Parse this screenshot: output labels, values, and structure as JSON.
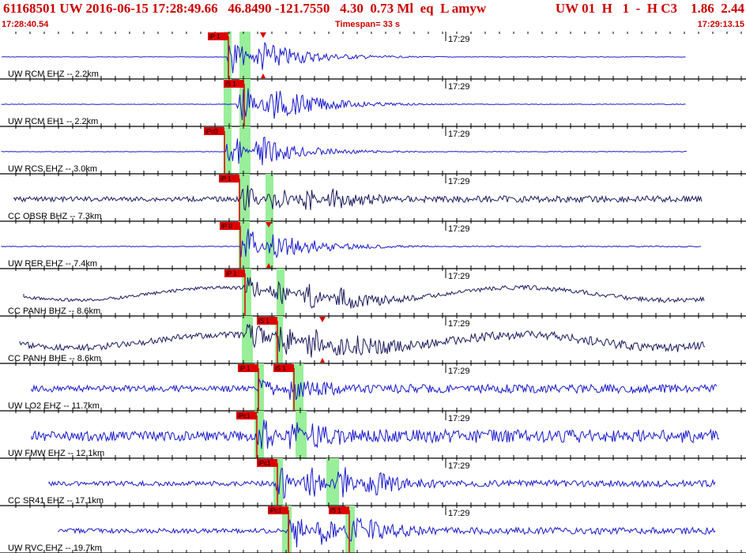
{
  "header": {
    "event_line": "61168501 UW 2016-06-15 17:28:49.66   46.8490 -121.7550   4.30  0.73 Ml  eq  L amyw",
    "status_line": "UW 01  H   1  -  H C3    1.86  2.44",
    "start_time": "17:28:40.54",
    "timespan": "Timespan=  33 s",
    "end_time": "17:29:13.15"
  },
  "colors": {
    "header": "#cc0000",
    "trace_blue": "#1a1acc",
    "trace_navy": "#1a1a5e",
    "window_green": "#99ee99",
    "pick_red": "#dd0000"
  },
  "traces": [
    {
      "label": "UW RCM EHZ -- 2.2km",
      "tick": "17:29",
      "color": "blue",
      "picks": [
        "iP 1",
        "S"
      ]
    },
    {
      "label": "UW RCM EH1 -- 2.2km",
      "tick": "17:29",
      "color": "blue",
      "picks": [
        "iS 1"
      ]
    },
    {
      "label": "UW RCS EHZ -- 3.0km",
      "tick": "17:29",
      "color": "blue",
      "picks": [
        "iPc0"
      ]
    },
    {
      "label": "CC OBSR BHZ -- 7.3km",
      "tick": "17:29",
      "color": "navy",
      "picks": [
        "iP 1"
      ]
    },
    {
      "label": "UW RER EHZ -- 7.4km",
      "tick": "17:29",
      "color": "blue",
      "picks": [
        "iP 0",
        "S"
      ]
    },
    {
      "label": "CC PANH BHZ -- 8.6km",
      "tick": "17:29",
      "color": "navy",
      "picks": [
        "iP 1"
      ]
    },
    {
      "label": "CC PANH BHE -- 8.6km",
      "tick": "17:29",
      "color": "navy",
      "picks": [
        "iS 1",
        "S"
      ]
    },
    {
      "label": "UW LO2 EHZ -- 11.7km",
      "tick": "17:29",
      "color": "blue",
      "picks": [
        "iP 1",
        "iS 1"
      ]
    },
    {
      "label": "UW FMW EHZ -- 12.1km",
      "tick": "17:29",
      "color": "blue",
      "picks": [
        "iPc1"
      ]
    },
    {
      "label": "CC SR41 EHZ -- 17.1km",
      "tick": "17:29",
      "color": "blue",
      "picks": [
        "iPc1"
      ]
    },
    {
      "label": "UW RVC EHZ -- 19.7km",
      "tick": "17:29",
      "color": "blue",
      "picks": [
        "iPc1",
        "iS 1"
      ]
    }
  ]
}
